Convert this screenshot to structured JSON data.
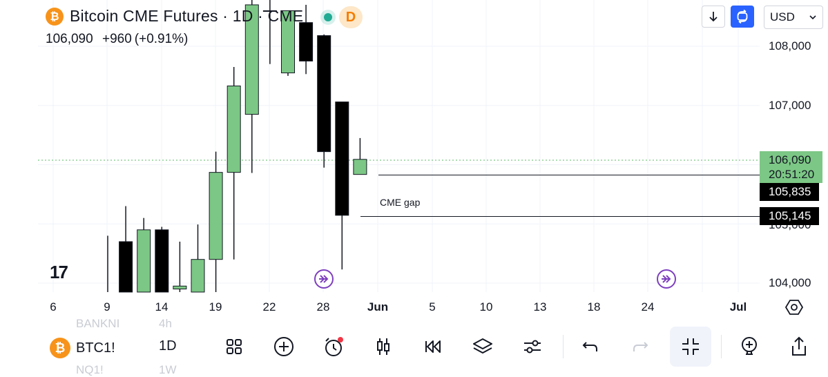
{
  "header": {
    "symbol_title": "Bitcoin CME Futures · 1D · CME",
    "btc_glyph": "₿",
    "badge": "D",
    "last_price": "106,090",
    "change": "+960",
    "change_pct": "(+0.91%)"
  },
  "top_controls": {
    "currency": "USD",
    "download_icon": "download-arrow-icon",
    "sync_icon": "sync-icon"
  },
  "price_axis": {
    "labels": [
      "108,000",
      "107,000",
      "104,000"
    ],
    "last_price_tag": "106,090",
    "countdown": "20:51:20",
    "gap_top_tag": "105,835",
    "gap_bottom_tag": "105,145",
    "hidden_tick": "105,000"
  },
  "time_axis": {
    "labels": [
      "6",
      "9",
      "14",
      "19",
      "22",
      "28",
      "Jun",
      "5",
      "10",
      "13",
      "18",
      "24",
      "Jul"
    ]
  },
  "annotations": {
    "cme_gap": "CME gap"
  },
  "watermark": "17",
  "ghost_list": {
    "row1_symbol": "BANKNI",
    "row1_interval": "4h",
    "row2_symbol": "NQ1!",
    "row2_interval": "1W"
  },
  "bottom_bar": {
    "symbol": "BTC1!",
    "interval": "1D",
    "tools": [
      "grid-layout-icon",
      "add-circle-icon",
      "alert-clock-icon",
      "candles-icon",
      "replay-icon",
      "layers-icon",
      "settings-sliders-icon",
      "undo-icon",
      "redo-icon",
      "exit-fullscreen-icon",
      "add-indicator-icon",
      "share-icon"
    ]
  },
  "colors": {
    "up": "#7cc785",
    "down": "#000000",
    "accent": "#2962ff",
    "event": "#7e3fbf"
  },
  "chart_data": {
    "type": "candlestick",
    "title": "Bitcoin CME Futures · 1D · CME",
    "ylim": [
      103900,
      108250
    ],
    "y_ticks": [
      104000,
      107000,
      108000
    ],
    "candles": [
      {
        "o": 103300,
        "h": 104800,
        "l": 103200,
        "c": 103300
      },
      {
        "o": 104700,
        "h": 105300,
        "l": 103400,
        "c": 103600
      },
      {
        "o": 103600,
        "h": 105100,
        "l": 103300,
        "c": 104900
      },
      {
        "o": 104900,
        "h": 104950,
        "l": 103300,
        "c": 103500
      },
      {
        "o": 103900,
        "h": 104700,
        "l": 103400,
        "c": 103950
      },
      {
        "o": 103800,
        "h": 104990,
        "l": 103400,
        "c": 104400
      },
      {
        "o": 104400,
        "h": 106220,
        "l": 103800,
        "c": 105870
      },
      {
        "o": 105870,
        "h": 107650,
        "l": 104400,
        "c": 107330
      },
      {
        "o": 106850,
        "h": 108800,
        "l": 105860,
        "c": 108700
      },
      {
        "o": 108600,
        "h": 108900,
        "l": 107700,
        "c": 108600
      },
      {
        "o": 107550,
        "h": 108600,
        "l": 107500,
        "c": 108600
      },
      {
        "o": 108400,
        "h": 108700,
        "l": 107530,
        "c": 107750
      },
      {
        "o": 108180,
        "h": 108200,
        "l": 105950,
        "c": 106220
      },
      {
        "o": 107060,
        "h": 107050,
        "l": 104230,
        "c": 105145
      },
      {
        "o": 105835,
        "h": 106450,
        "l": 105835,
        "c": 106090
      }
    ],
    "last_price": 106090,
    "gap": [
      105145,
      105835
    ]
  }
}
